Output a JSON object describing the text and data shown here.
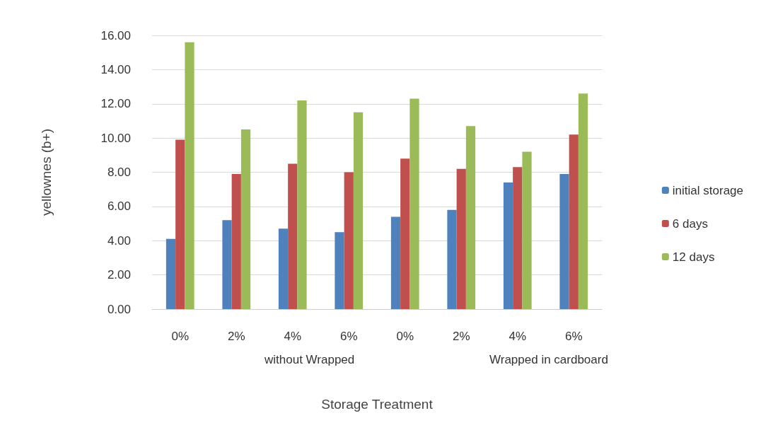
{
  "chart_data": {
    "type": "bar",
    "xlabel": "Storage Treatment",
    "ylabel": "yellownes (b+)",
    "categories": [
      "0%",
      "2%",
      "4%",
      "6%",
      "0%",
      "2%",
      "4%",
      "6%"
    ],
    "series": [
      {
        "name": "initial storage",
        "color": "#4f81bd",
        "values": [
          4.1,
          5.2,
          4.7,
          4.5,
          5.4,
          5.8,
          7.4,
          7.9
        ]
      },
      {
        "name": "6 days",
        "color": "#c0504d",
        "values": [
          9.9,
          7.9,
          8.5,
          8.0,
          8.8,
          8.2,
          8.3,
          10.2
        ]
      },
      {
        "name": "12 days",
        "color": "#9bbb59",
        "values": [
          15.6,
          10.5,
          12.2,
          11.5,
          12.3,
          10.7,
          9.2,
          12.6
        ]
      }
    ],
    "ylim": [
      0,
      16
    ],
    "yticks": [
      {
        "value": 0,
        "label": "0.00"
      },
      {
        "value": 2,
        "label": "2.00"
      },
      {
        "value": 4,
        "label": "4.00"
      },
      {
        "value": 6,
        "label": "6.00"
      },
      {
        "value": 8,
        "label": "8.00"
      },
      {
        "value": 10,
        "label": "10.00"
      },
      {
        "value": 12,
        "label": "12.00"
      },
      {
        "value": 14,
        "label": "14.00"
      },
      {
        "value": 16,
        "label": "16.00"
      }
    ],
    "annotations": [
      "without Wrapped",
      "Wrapped in cardboard"
    ],
    "grid": true,
    "legend": "right"
  }
}
